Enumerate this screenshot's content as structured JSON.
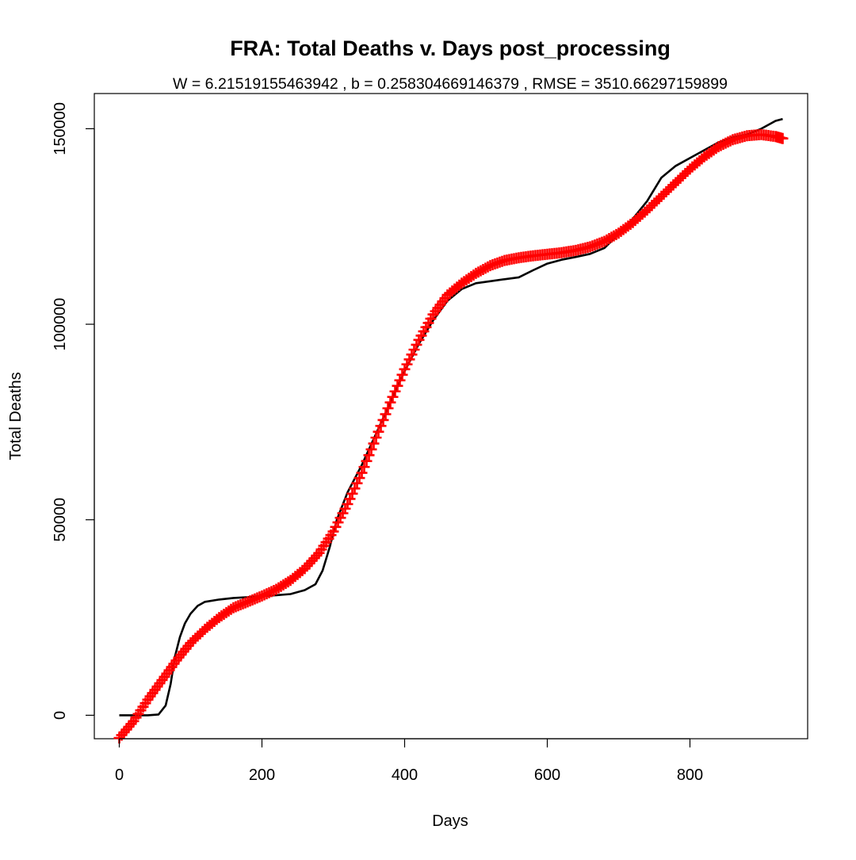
{
  "chart_data": {
    "type": "line",
    "title": "FRA: Total Deaths v. Days post_processing",
    "subtitle": "W = 6.21519155463942 , b = 0.258304669146379 , RMSE = 3510.66297159899",
    "xlabel": "Days",
    "ylabel": "Total Deaths",
    "xlim": [
      -35,
      965
    ],
    "ylim": [
      -6000,
      159000
    ],
    "x_ticks": [
      0,
      200,
      400,
      600,
      800
    ],
    "x_tick_labels": [
      "0",
      "200",
      "400",
      "600",
      "800"
    ],
    "y_ticks": [
      0,
      50000,
      100000,
      150000
    ],
    "y_tick_labels": [
      "0",
      "50000",
      "100000",
      "150000"
    ],
    "grid": false,
    "series": [
      {
        "style": "line",
        "color": "#000000",
        "x": [
          0,
          20,
          40,
          55,
          65,
          72,
          78,
          85,
          92,
          100,
          110,
          120,
          140,
          160,
          180,
          200,
          220,
          240,
          260,
          275,
          285,
          295,
          305,
          320,
          340,
          360,
          380,
          400,
          420,
          440,
          460,
          480,
          500,
          520,
          540,
          560,
          580,
          600,
          620,
          640,
          660,
          680,
          700,
          720,
          740,
          760,
          780,
          800,
          820,
          840,
          860,
          880,
          900,
          920,
          930
        ],
        "y": [
          0,
          0,
          0,
          200,
          2500,
          8000,
          15000,
          20000,
          23500,
          26000,
          28000,
          29000,
          29600,
          30000,
          30200,
          30500,
          30700,
          31000,
          32000,
          33500,
          37000,
          43000,
          50000,
          57000,
          64000,
          72000,
          80000,
          88000,
          95000,
          101000,
          106000,
          109000,
          110500,
          111000,
          111500,
          112000,
          113800,
          115500,
          116500,
          117200,
          118000,
          119500,
          123000,
          127000,
          131500,
          137500,
          140500,
          142500,
          144500,
          146500,
          147800,
          148500,
          150000,
          152000,
          152500
        ]
      },
      {
        "style": "plus-markers",
        "color": "#ff0000",
        "x": [
          0,
          20,
          40,
          60,
          80,
          100,
          120,
          140,
          160,
          180,
          200,
          220,
          240,
          260,
          280,
          300,
          320,
          340,
          360,
          380,
          400,
          420,
          440,
          460,
          480,
          500,
          520,
          540,
          560,
          580,
          600,
          620,
          640,
          660,
          680,
          700,
          720,
          740,
          760,
          780,
          800,
          820,
          840,
          860,
          880,
          900,
          920,
          930
        ],
        "y": [
          -5800,
          -1500,
          4000,
          9000,
          14000,
          18500,
          22000,
          25000,
          27500,
          29000,
          30500,
          32200,
          34500,
          37500,
          41500,
          47000,
          54000,
          62000,
          71000,
          80000,
          88500,
          96000,
          102500,
          107500,
          110500,
          113000,
          115000,
          116300,
          117000,
          117500,
          117900,
          118300,
          118900,
          119800,
          121200,
          123300,
          126000,
          129200,
          132700,
          136200,
          139700,
          142800,
          145400,
          147200,
          148200,
          148500,
          148000,
          147500
        ]
      }
    ]
  }
}
